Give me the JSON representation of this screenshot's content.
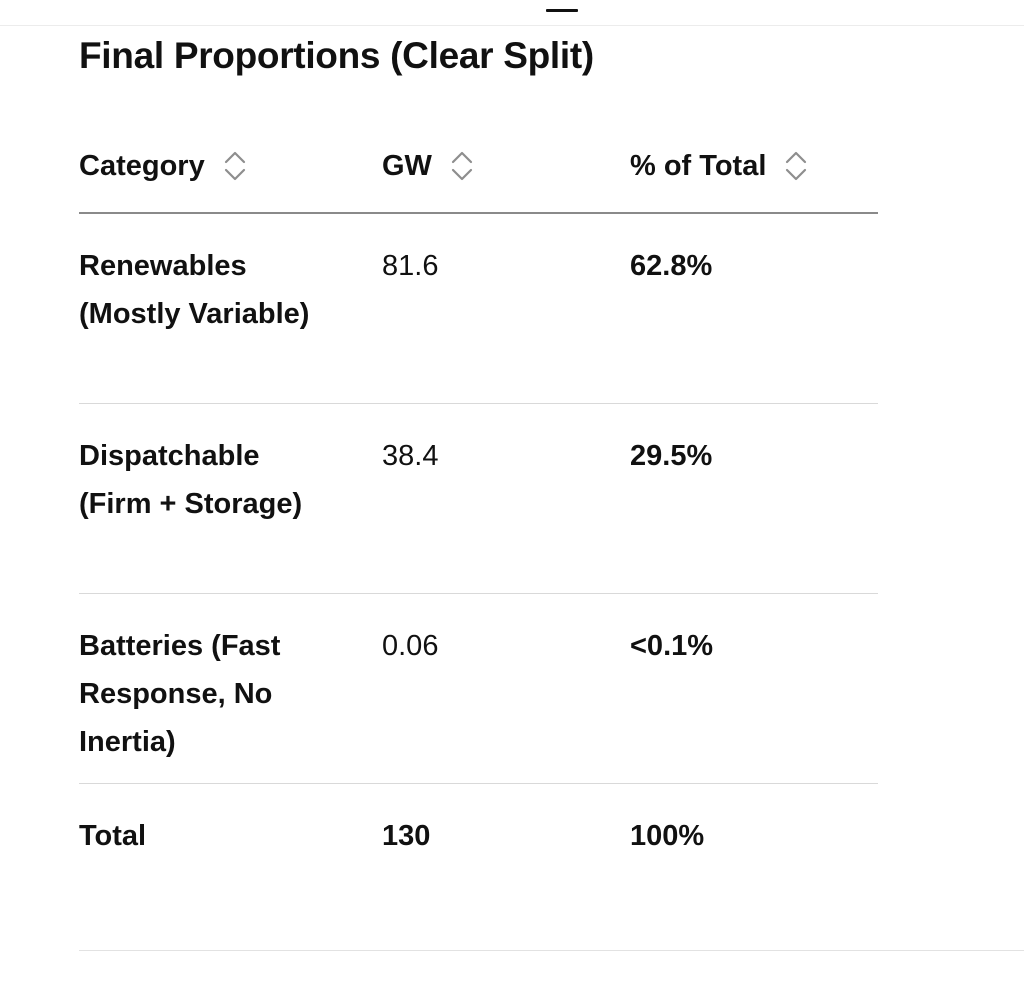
{
  "title": "Final Proportions (Clear Split)",
  "table": {
    "headers": [
      {
        "label": "Category",
        "icon": "sort-icon"
      },
      {
        "label": "GW",
        "icon": "sort-icon"
      },
      {
        "label": "% of Total",
        "icon": "sort-icon"
      }
    ],
    "rows": [
      {
        "category": "Renewables (Mostly Variable)",
        "gw": "81.6",
        "pct": "62.8%"
      },
      {
        "category": "Dispatchable (Firm + Storage)",
        "gw": "38.4",
        "pct": "29.5%"
      },
      {
        "category": "Batteries (Fast Response, No Inertia)",
        "gw": "0.06",
        "pct": "<0.1%"
      },
      {
        "category": "Total",
        "gw": "130",
        "pct": "100%"
      }
    ]
  }
}
